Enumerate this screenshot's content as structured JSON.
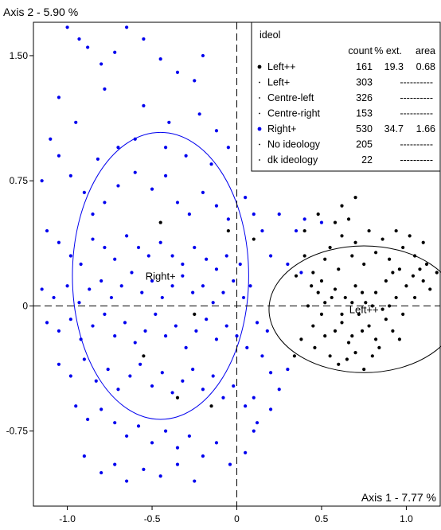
{
  "chart_data": {
    "type": "scatter",
    "title": "",
    "xlabel": "Axis 1  -  7.77 %",
    "ylabel": "Axis 2  -  5.90 %",
    "xlim": [
      -1.2,
      1.2
    ],
    "ylim": [
      -1.2,
      1.7
    ],
    "x_ticks": [
      "-1.0",
      "-0.5",
      "0",
      "0.5",
      "1.0"
    ],
    "y_ticks": [
      "1.50",
      "0.75",
      "0",
      "-0.75"
    ],
    "grid": false,
    "zero_lines": "dashed",
    "legend": {
      "title": "ideol",
      "placement": "top-right",
      "headers": [
        "count",
        "% ext.",
        "area"
      ],
      "rows": [
        {
          "label": "Left++",
          "count": "161",
          "ext": "19.3",
          "area": "0.68",
          "color": "#000000",
          "marker": "dot"
        },
        {
          "label": "Left+",
          "count": "303",
          "ext": "----------",
          "area": "",
          "color": "#000000",
          "marker": "tiny"
        },
        {
          "label": "Centre-left",
          "count": "326",
          "ext": "----------",
          "area": "",
          "color": "#000000",
          "marker": "tiny"
        },
        {
          "label": "Centre-right",
          "count": "153",
          "ext": "----------",
          "area": "",
          "color": "#000000",
          "marker": "tiny"
        },
        {
          "label": "Right+",
          "count": "530",
          "ext": "34.7",
          "area": "1.66",
          "color": "#0000ee",
          "marker": "dot"
        },
        {
          "label": "No ideology",
          "count": "205",
          "ext": "----------",
          "area": "",
          "color": "#000000",
          "marker": "tiny"
        },
        {
          "label": "dk ideology",
          "count": "22",
          "ext": "----------",
          "area": "",
          "color": "#000000",
          "marker": "tiny"
        }
      ]
    },
    "groups": [
      {
        "label": "Right+",
        "color": "#0000ee",
        "ellipse": {
          "cx": -0.45,
          "cy": 0.18,
          "rx": 0.52,
          "ry": 0.86
        }
      },
      {
        "label": "Left++",
        "color": "#000000",
        "ellipse": {
          "cx": 0.75,
          "cy": -0.02,
          "rx": 0.56,
          "ry": 0.38
        }
      }
    ],
    "series": [
      {
        "name": "Right+",
        "color": "#0000ee",
        "points": [
          [
            -1.0,
            1.67
          ],
          [
            -0.93,
            1.6
          ],
          [
            -0.88,
            1.55
          ],
          [
            -0.8,
            1.45
          ],
          [
            -0.72,
            1.52
          ],
          [
            -0.65,
            1.67
          ],
          [
            -0.55,
            1.6
          ],
          [
            -0.45,
            1.48
          ],
          [
            -0.35,
            1.4
          ],
          [
            -0.25,
            1.35
          ],
          [
            -0.2,
            1.5
          ],
          [
            -0.12,
            1.05
          ],
          [
            -0.05,
            0.95
          ],
          [
            -1.1,
            1.0
          ],
          [
            -1.05,
            0.9
          ],
          [
            -1.15,
            0.75
          ],
          [
            -0.98,
            0.78
          ],
          [
            -0.9,
            0.68
          ],
          [
            -0.85,
            0.55
          ],
          [
            -0.78,
            0.62
          ],
          [
            -0.7,
            0.72
          ],
          [
            -0.6,
            0.8
          ],
          [
            -0.5,
            0.7
          ],
          [
            -0.42,
            0.78
          ],
          [
            -0.35,
            0.62
          ],
          [
            -0.28,
            0.55
          ],
          [
            -0.2,
            0.68
          ],
          [
            -0.12,
            0.6
          ],
          [
            -0.05,
            0.52
          ],
          [
            0.05,
            0.65
          ],
          [
            0.1,
            0.55
          ],
          [
            0.15,
            0.45
          ],
          [
            0.25,
            0.55
          ],
          [
            0.35,
            0.45
          ],
          [
            0.4,
            0.52
          ],
          [
            0.5,
            0.5
          ],
          [
            0.2,
            0.3
          ],
          [
            0.3,
            0.25
          ],
          [
            0.38,
            0.2
          ],
          [
            -1.12,
            0.45
          ],
          [
            -1.05,
            0.38
          ],
          [
            -0.98,
            0.3
          ],
          [
            -0.92,
            0.25
          ],
          [
            -0.85,
            0.4
          ],
          [
            -0.78,
            0.35
          ],
          [
            -0.72,
            0.28
          ],
          [
            -0.65,
            0.42
          ],
          [
            -0.58,
            0.35
          ],
          [
            -0.52,
            0.3
          ],
          [
            -0.45,
            0.38
          ],
          [
            -0.38,
            0.3
          ],
          [
            -0.32,
            0.25
          ],
          [
            -0.25,
            0.35
          ],
          [
            -0.18,
            0.28
          ],
          [
            -0.12,
            0.22
          ],
          [
            -0.06,
            0.3
          ],
          [
            0.02,
            0.25
          ],
          [
            0.08,
            0.12
          ],
          [
            -1.15,
            0.1
          ],
          [
            -1.08,
            0.05
          ],
          [
            -1.0,
            0.12
          ],
          [
            -0.93,
            0.02
          ],
          [
            -0.87,
            0.1
          ],
          [
            -0.8,
            0.15
          ],
          [
            -0.74,
            0.05
          ],
          [
            -0.68,
            0.12
          ],
          [
            -0.62,
            0.2
          ],
          [
            -0.56,
            0.08
          ],
          [
            -0.5,
            0.15
          ],
          [
            -0.44,
            0.05
          ],
          [
            -0.38,
            0.12
          ],
          [
            -0.32,
            0.18
          ],
          [
            -0.26,
            0.08
          ],
          [
            -0.2,
            0.12
          ],
          [
            -0.14,
            0.02
          ],
          [
            -0.08,
            0.08
          ],
          [
            -0.02,
            0.15
          ],
          [
            0.04,
            0.05
          ],
          [
            -1.12,
            -0.1
          ],
          [
            -1.05,
            -0.15
          ],
          [
            -0.98,
            -0.08
          ],
          [
            -0.92,
            -0.2
          ],
          [
            -0.85,
            -0.12
          ],
          [
            -0.78,
            -0.05
          ],
          [
            -0.72,
            -0.18
          ],
          [
            -0.66,
            -0.1
          ],
          [
            -0.6,
            -0.22
          ],
          [
            -0.54,
            -0.15
          ],
          [
            -0.48,
            -0.05
          ],
          [
            -0.42,
            -0.18
          ],
          [
            -0.36,
            -0.12
          ],
          [
            -0.3,
            -0.25
          ],
          [
            -0.24,
            -0.15
          ],
          [
            -0.18,
            -0.08
          ],
          [
            -0.12,
            -0.2
          ],
          [
            -0.06,
            -0.12
          ],
          [
            0.0,
            -0.18
          ],
          [
            0.06,
            -0.25
          ],
          [
            0.12,
            -0.1
          ],
          [
            0.18,
            -0.15
          ],
          [
            -1.05,
            -0.35
          ],
          [
            -0.98,
            -0.42
          ],
          [
            -0.9,
            -0.32
          ],
          [
            -0.83,
            -0.45
          ],
          [
            -0.76,
            -0.38
          ],
          [
            -0.7,
            -0.5
          ],
          [
            -0.63,
            -0.42
          ],
          [
            -0.57,
            -0.35
          ],
          [
            -0.5,
            -0.48
          ],
          [
            -0.44,
            -0.4
          ],
          [
            -0.38,
            -0.52
          ],
          [
            -0.32,
            -0.45
          ],
          [
            -0.26,
            -0.38
          ],
          [
            -0.2,
            -0.5
          ],
          [
            -0.14,
            -0.42
          ],
          [
            -0.08,
            -0.55
          ],
          [
            -0.02,
            -0.48
          ],
          [
            0.05,
            -0.6
          ],
          [
            0.1,
            -0.55
          ],
          [
            -0.95,
            -0.6
          ],
          [
            -0.88,
            -0.68
          ],
          [
            -0.8,
            -0.62
          ],
          [
            -0.72,
            -0.7
          ],
          [
            -0.65,
            -0.78
          ],
          [
            -0.58,
            -0.72
          ],
          [
            -0.5,
            -0.82
          ],
          [
            -0.42,
            -0.75
          ],
          [
            -0.35,
            -0.85
          ],
          [
            -0.28,
            -0.78
          ],
          [
            -0.2,
            -0.9
          ],
          [
            -0.12,
            -0.82
          ],
          [
            -0.04,
            -0.95
          ],
          [
            0.05,
            -0.88
          ],
          [
            0.1,
            -0.75
          ],
          [
            -0.9,
            -0.9
          ],
          [
            -0.8,
            -1.0
          ],
          [
            -0.72,
            -0.95
          ],
          [
            -0.65,
            -1.05
          ],
          [
            -0.55,
            -0.98
          ],
          [
            -0.45,
            -1.02
          ],
          [
            -0.35,
            -0.95
          ],
          [
            -0.25,
            -1.05
          ],
          [
            0.12,
            -0.7
          ],
          [
            0.2,
            -0.62
          ],
          [
            0.25,
            -0.5
          ],
          [
            0.3,
            -0.38
          ],
          [
            0.2,
            -0.4
          ],
          [
            0.15,
            -0.3
          ],
          [
            -0.6,
            1.0
          ],
          [
            -0.4,
            1.1
          ],
          [
            -0.3,
            0.9
          ],
          [
            -0.15,
            0.85
          ],
          [
            -0.7,
            0.95
          ],
          [
            -0.82,
            0.88
          ],
          [
            -0.95,
            1.1
          ],
          [
            -1.05,
            1.25
          ],
          [
            -0.78,
            1.3
          ],
          [
            -0.55,
            1.2
          ],
          [
            -0.42,
            0.95
          ],
          [
            -0.22,
            1.15
          ]
        ]
      },
      {
        "name": "Left++",
        "color": "#000000",
        "points": [
          [
            0.55,
            -0.3
          ],
          [
            0.6,
            -0.35
          ],
          [
            0.65,
            -0.32
          ],
          [
            0.7,
            -0.28
          ],
          [
            0.75,
            -0.38
          ],
          [
            0.8,
            -0.3
          ],
          [
            0.58,
            -0.15
          ],
          [
            0.62,
            -0.1
          ],
          [
            0.68,
            -0.18
          ],
          [
            0.72,
            -0.05
          ],
          [
            0.78,
            -0.12
          ],
          [
            0.82,
            -0.2
          ],
          [
            0.88,
            -0.08
          ],
          [
            0.92,
            -0.15
          ],
          [
            0.98,
            -0.05
          ],
          [
            0.5,
            -0.05
          ],
          [
            0.45,
            -0.12
          ],
          [
            0.42,
            0.0
          ],
          [
            0.48,
            0.08
          ],
          [
            0.52,
            0.02
          ],
          [
            0.58,
            0.1
          ],
          [
            0.64,
            0.05
          ],
          [
            0.7,
            0.12
          ],
          [
            0.76,
            0.02
          ],
          [
            0.82,
            0.08
          ],
          [
            0.88,
            0.15
          ],
          [
            0.94,
            0.05
          ],
          [
            1.0,
            0.12
          ],
          [
            1.05,
            0.05
          ],
          [
            1.1,
            0.15
          ],
          [
            0.45,
            0.2
          ],
          [
            0.52,
            0.28
          ],
          [
            0.6,
            0.22
          ],
          [
            0.68,
            0.3
          ],
          [
            0.75,
            0.25
          ],
          [
            0.82,
            0.32
          ],
          [
            0.9,
            0.28
          ],
          [
            0.98,
            0.35
          ],
          [
            1.05,
            0.3
          ],
          [
            1.12,
            0.25
          ],
          [
            1.18,
            0.2
          ],
          [
            0.55,
            0.35
          ],
          [
            0.62,
            0.42
          ],
          [
            0.7,
            0.38
          ],
          [
            0.78,
            0.45
          ],
          [
            0.86,
            0.4
          ],
          [
            0.94,
            0.45
          ],
          [
            1.02,
            0.42
          ],
          [
            1.1,
            0.38
          ],
          [
            0.4,
            0.3
          ],
          [
            0.35,
            0.18
          ],
          [
            0.38,
            -0.2
          ],
          [
            0.34,
            -0.3
          ],
          [
            0.46,
            -0.25
          ],
          [
            0.52,
            -0.18
          ],
          [
            0.66,
            -0.22
          ],
          [
            0.74,
            -0.15
          ],
          [
            0.84,
            -0.25
          ],
          [
            0.96,
            -0.2
          ],
          [
            0.9,
            0.0
          ],
          [
            0.86,
            -0.02
          ],
          [
            0.8,
            0.0
          ],
          [
            0.74,
            0.08
          ],
          [
            0.68,
            0.02
          ],
          [
            0.62,
            -0.05
          ],
          [
            0.56,
            0.05
          ],
          [
            0.5,
            0.15
          ],
          [
            0.44,
            0.12
          ],
          [
            1.04,
            0.18
          ],
          [
            1.08,
            0.22
          ],
          [
            1.14,
            0.1
          ],
          [
            0.96,
            0.22
          ],
          [
            0.92,
            0.2
          ],
          [
            0.66,
            0.52
          ],
          [
            0.58,
            0.5
          ],
          [
            0.62,
            0.6
          ],
          [
            0.7,
            0.65
          ],
          [
            0.48,
            0.55
          ],
          [
            0.4,
            0.45
          ],
          [
            -0.15,
            -0.6
          ],
          [
            -0.35,
            -0.55
          ],
          [
            -0.55,
            -0.3
          ],
          [
            -0.25,
            -0.05
          ],
          [
            0.1,
            0.4
          ],
          [
            -0.05,
            0.45
          ],
          [
            -0.45,
            0.5
          ]
        ]
      }
    ]
  }
}
